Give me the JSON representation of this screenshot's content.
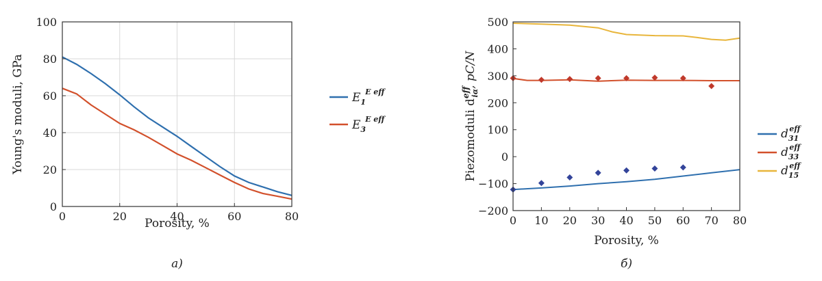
{
  "chart_data": [
    {
      "type": "line",
      "caption": "a)",
      "xlabel": "Porosity, %",
      "ylabel": "Young's moduli, GPa",
      "xlim": [
        0,
        80
      ],
      "ylim": [
        0,
        100
      ],
      "xticks": [
        "0",
        "20",
        "40",
        "60",
        "80"
      ],
      "yticks": [
        "0",
        "20",
        "40",
        "60",
        "80",
        "100"
      ],
      "grid": true,
      "legend_position": "right",
      "series": [
        {
          "name": "E1",
          "legend_main": "E",
          "legend_sub": "1",
          "legend_sup": "E eff",
          "color": "#2e6fae",
          "x": [
            0,
            5,
            10,
            15,
            20,
            25,
            30,
            35,
            40,
            45,
            50,
            55,
            60,
            65,
            70,
            75,
            80
          ],
          "y": [
            81,
            77,
            72,
            66.5,
            60.5,
            54,
            48,
            43,
            38,
            32.5,
            27,
            21.5,
            16.5,
            13,
            10.5,
            8,
            6
          ]
        },
        {
          "name": "E3",
          "legend_main": "E",
          "legend_sub": "3",
          "legend_sup": "E eff",
          "color": "#d2502b",
          "x": [
            0,
            5,
            10,
            15,
            20,
            25,
            30,
            35,
            40,
            45,
            50,
            55,
            60,
            65,
            70,
            75,
            80
          ],
          "y": [
            64,
            61,
            55,
            50,
            45,
            41.5,
            37.5,
            33,
            28.5,
            25,
            21,
            17,
            13,
            9.5,
            7,
            5.5,
            4
          ]
        }
      ]
    },
    {
      "type": "line",
      "caption": "б)",
      "xlabel": "Porosity, %",
      "ylabel_main": "Piezomoduli d",
      "ylabel_sup": "eff",
      "ylabel_sub": "iα",
      "ylabel_unit": ", pC/N",
      "xlim": [
        0,
        80
      ],
      "ylim": [
        -200,
        500
      ],
      "xticks": [
        "0",
        "10",
        "20",
        "30",
        "40",
        "50",
        "60",
        "70",
        "80"
      ],
      "yticks": [
        "−200",
        "−100",
        "0",
        "100",
        "200",
        "300",
        "400",
        "500"
      ],
      "ytick_values": [
        -200,
        -100,
        0,
        100,
        200,
        300,
        400,
        500
      ],
      "grid": false,
      "legend_position": "right",
      "series": [
        {
          "name": "d31",
          "legend_main": "d",
          "legend_sub": "31",
          "legend_sup": "eff",
          "color": "#2e6fae",
          "x": [
            0,
            10,
            20,
            30,
            40,
            50,
            60,
            70,
            80
          ],
          "y": [
            -122,
            -116,
            -109,
            -100,
            -93,
            -84,
            -72,
            -60,
            -48
          ],
          "points_color": "#33449a",
          "points_x": [
            0,
            10,
            20,
            30,
            40,
            50,
            60
          ],
          "points_y": [
            -122,
            -98,
            -77,
            -60,
            -51,
            -44,
            -40
          ]
        },
        {
          "name": "d33",
          "legend_main": "d",
          "legend_sub": "33",
          "legend_sup": "eff",
          "color": "#d2502b",
          "x": [
            0,
            5,
            10,
            20,
            30,
            40,
            50,
            60,
            70,
            80
          ],
          "y": [
            290,
            283,
            283,
            285,
            280,
            284,
            283,
            283,
            282,
            282
          ],
          "points_color": "#c0392b",
          "points_x": [
            0,
            10,
            20,
            30,
            40,
            50,
            60,
            70
          ],
          "points_y": [
            291,
            285,
            288,
            291,
            291,
            293,
            291,
            262
          ]
        },
        {
          "name": "d15",
          "legend_main": "d",
          "legend_sub": "15",
          "legend_sup": "eff",
          "color": "#e8b53a",
          "x": [
            0,
            10,
            20,
            30,
            35,
            40,
            50,
            60,
            65,
            70,
            75,
            80
          ],
          "y": [
            495,
            492,
            488,
            478,
            463,
            453,
            449,
            448,
            442,
            435,
            432,
            440
          ]
        }
      ]
    }
  ]
}
